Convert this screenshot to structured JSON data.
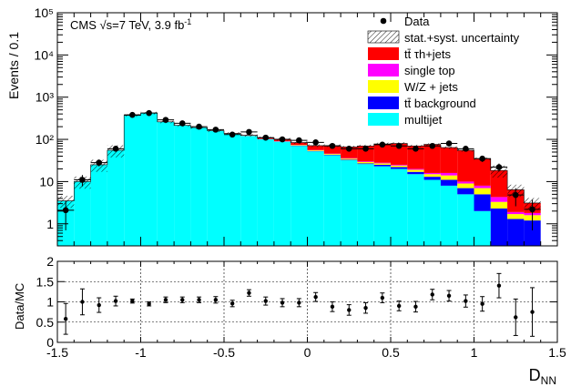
{
  "chart_data": [
    {
      "type": "bar",
      "subtype": "stacked-histogram",
      "x_bin_width": 0.1,
      "x_first_bin_low": -1.5,
      "bin_centers": [
        -1.45,
        -1.35,
        -1.25,
        -1.15,
        -1.05,
        -0.95,
        -0.85,
        -0.75,
        -0.65,
        -0.55,
        -0.45,
        -0.35,
        -0.25,
        -0.15,
        -0.05,
        0.05,
        0.15,
        0.25,
        0.35,
        0.45,
        0.55,
        0.65,
        0.75,
        0.85,
        0.95,
        1.05,
        1.15,
        1.25,
        1.35
      ],
      "xlim": [
        -1.5,
        1.5
      ],
      "ylabel": "Events / 0.1",
      "ylim": [
        0.3,
        100000
      ],
      "yscale": "log",
      "y_ticks": [
        "1",
        "10",
        "10²",
        "10³",
        "10⁴",
        "10⁵"
      ],
      "annotation_parts": [
        "CMS ",
        "√s",
        "=7 TeV, 3.9 fb",
        "-1"
      ],
      "legend_position": "top-right",
      "legend": [
        {
          "label": "Data",
          "style": "marker"
        },
        {
          "label": "stat.+syst. uncertainty",
          "style": "hatched"
        },
        {
          "label": "tt̄ τh+jets",
          "color": "#ff0000"
        },
        {
          "label": "single top",
          "color": "#ff00ff"
        },
        {
          "label": "W/Z + jets",
          "color": "#ffff00"
        },
        {
          "label": "tt̄ background",
          "color": "#0000ff"
        },
        {
          "label": "multijet",
          "color": "#00ffff"
        }
      ],
      "series": [
        {
          "name": "multijet",
          "color": "#00ffff",
          "values": [
            3.5,
            10,
            25,
            55,
            370,
            420,
            260,
            215,
            190,
            160,
            135,
            120,
            100,
            88,
            70,
            52,
            42,
            32,
            26,
            23,
            20,
            15,
            11,
            8,
            5,
            2,
            0.3,
            0.3,
            0.3
          ]
        },
        {
          "name": "tt̄ background",
          "color": "#0000ff",
          "values": [
            0,
            0,
            0,
            0,
            0,
            0,
            0,
            0,
            0,
            0,
            1,
            1,
            1,
            1,
            1,
            1,
            1,
            1,
            1,
            2,
            2,
            2,
            2,
            3,
            2,
            3,
            2,
            1.0,
            0.9
          ]
        },
        {
          "name": "W/Z + jets",
          "color": "#ffff00",
          "values": [
            0,
            0,
            0,
            0,
            0,
            0,
            0,
            0,
            0,
            0,
            1,
            1,
            1,
            1,
            2,
            2,
            2,
            2,
            2,
            2,
            2,
            2,
            2,
            3,
            2,
            2,
            1,
            0.4,
            0.4
          ]
        },
        {
          "name": "single top",
          "color": "#ff00ff",
          "values": [
            0,
            0,
            0,
            0,
            0,
            0,
            0,
            0,
            0,
            0,
            0,
            1,
            1,
            1,
            1,
            1,
            1,
            1,
            1,
            1,
            1,
            1,
            1,
            2,
            1,
            1,
            1,
            0.2,
            0.2
          ]
        },
        {
          "name": "tt̄ τh+jets",
          "color": "#ff0000",
          "values": [
            0,
            0,
            0,
            0,
            0,
            0,
            0,
            0,
            0,
            0,
            2,
            2,
            5,
            10,
            10,
            15,
            25,
            30,
            40,
            50,
            55,
            50,
            60,
            48,
            45,
            27,
            14,
            4.5,
            1.3
          ]
        }
      ],
      "data_points": [
        2.1,
        11,
        28,
        60,
        380,
        420,
        290,
        240,
        200,
        170,
        130,
        150,
        110,
        100,
        95,
        85,
        70,
        60,
        60,
        75,
        70,
        60,
        70,
        80,
        60,
        35,
        22,
        4.8,
        2.2
      ],
      "data_errors": [
        1.4,
        3.3,
        5.3,
        7.7,
        19.5,
        20.5,
        17,
        15.5,
        14.1,
        13,
        11.4,
        12.2,
        10.5,
        10,
        9.7,
        9.2,
        8.4,
        7.7,
        7.7,
        8.7,
        8.4,
        7.7,
        8.4,
        8.9,
        7.7,
        5.9,
        4.7,
        2.2,
        1.5
      ]
    },
    {
      "type": "scatter",
      "xlabel": "D",
      "xlabel_subscript": "NN",
      "ylabel": "Data/MC",
      "xlim": [
        -1.5,
        1.5
      ],
      "ylim": [
        0,
        2
      ],
      "x_ticks": [
        "-1.5",
        "-1",
        "-0.5",
        "0",
        "0.5",
        "1",
        "1.5"
      ],
      "y_ticks": [
        "0",
        "0.5",
        "1",
        "1.5",
        "2"
      ],
      "grid": true,
      "x": [
        -1.45,
        -1.35,
        -1.25,
        -1.15,
        -1.05,
        -0.95,
        -0.85,
        -0.75,
        -0.65,
        -0.55,
        -0.45,
        -0.35,
        -0.25,
        -0.15,
        -0.05,
        0.05,
        0.15,
        0.25,
        0.35,
        0.45,
        0.55,
        0.65,
        0.75,
        0.85,
        0.95,
        1.05,
        1.15,
        1.25,
        1.35
      ],
      "y": [
        0.58,
        1.0,
        0.92,
        1.02,
        1.02,
        0.95,
        1.05,
        1.05,
        1.05,
        1.05,
        0.96,
        1.22,
        1.02,
        0.98,
        0.98,
        1.12,
        0.88,
        0.8,
        0.85,
        1.1,
        0.9,
        0.88,
        1.18,
        1.15,
        1.02,
        0.95,
        1.4,
        0.62,
        0.75
      ],
      "yerr": [
        0.38,
        0.32,
        0.18,
        0.12,
        0.05,
        0.05,
        0.07,
        0.07,
        0.07,
        0.08,
        0.08,
        0.08,
        0.1,
        0.1,
        0.1,
        0.11,
        0.12,
        0.13,
        0.13,
        0.12,
        0.12,
        0.13,
        0.13,
        0.13,
        0.15,
        0.18,
        0.3,
        0.45,
        0.6
      ]
    }
  ]
}
